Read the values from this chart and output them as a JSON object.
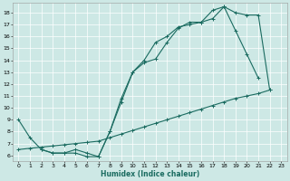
{
  "xlabel": "Humidex (Indice chaleur)",
  "bg_color": "#cde8e5",
  "line_color": "#1a6b60",
  "xlim": [
    -0.5,
    23.5
  ],
  "ylim": [
    5.5,
    18.8
  ],
  "yticks": [
    6,
    7,
    8,
    9,
    10,
    11,
    12,
    13,
    14,
    15,
    16,
    17,
    18
  ],
  "xticks": [
    0,
    1,
    2,
    3,
    4,
    5,
    6,
    7,
    8,
    9,
    10,
    11,
    12,
    13,
    14,
    15,
    16,
    17,
    18,
    19,
    20,
    21,
    22,
    23
  ],
  "line1_x": [
    0,
    1,
    2,
    3,
    4,
    5,
    6,
    7,
    8,
    9,
    10,
    11,
    12,
    13,
    14,
    15,
    16,
    17,
    18,
    19,
    20,
    21,
    22
  ],
  "line1_y": [
    9.0,
    7.5,
    6.5,
    6.2,
    6.2,
    6.2,
    5.9,
    5.9,
    8.0,
    10.5,
    13.0,
    13.8,
    14.1,
    15.5,
    16.7,
    17.2,
    17.2,
    17.5,
    18.5,
    18.0,
    17.8,
    17.8,
    11.5
  ],
  "line2_x": [
    2,
    3,
    4,
    5,
    6,
    7,
    8,
    9,
    10,
    11,
    12,
    13,
    14,
    15,
    16,
    17,
    18,
    19,
    20,
    21
  ],
  "line2_y": [
    6.5,
    6.2,
    6.2,
    6.5,
    6.2,
    5.9,
    8.0,
    10.8,
    13.0,
    14.0,
    15.5,
    16.0,
    16.8,
    17.0,
    17.2,
    18.2,
    18.5,
    16.5,
    14.5,
    12.5
  ],
  "line3_x": [
    0,
    1,
    2,
    3,
    4,
    5,
    6,
    7,
    8,
    9,
    10,
    11,
    12,
    13,
    14,
    15,
    16,
    17,
    18,
    19,
    20,
    21,
    22
  ],
  "line3_y": [
    6.5,
    6.6,
    6.7,
    6.8,
    6.9,
    7.0,
    7.1,
    7.2,
    7.5,
    7.8,
    8.1,
    8.4,
    8.7,
    9.0,
    9.3,
    9.6,
    9.9,
    10.2,
    10.5,
    10.8,
    11.0,
    11.2,
    11.5
  ]
}
